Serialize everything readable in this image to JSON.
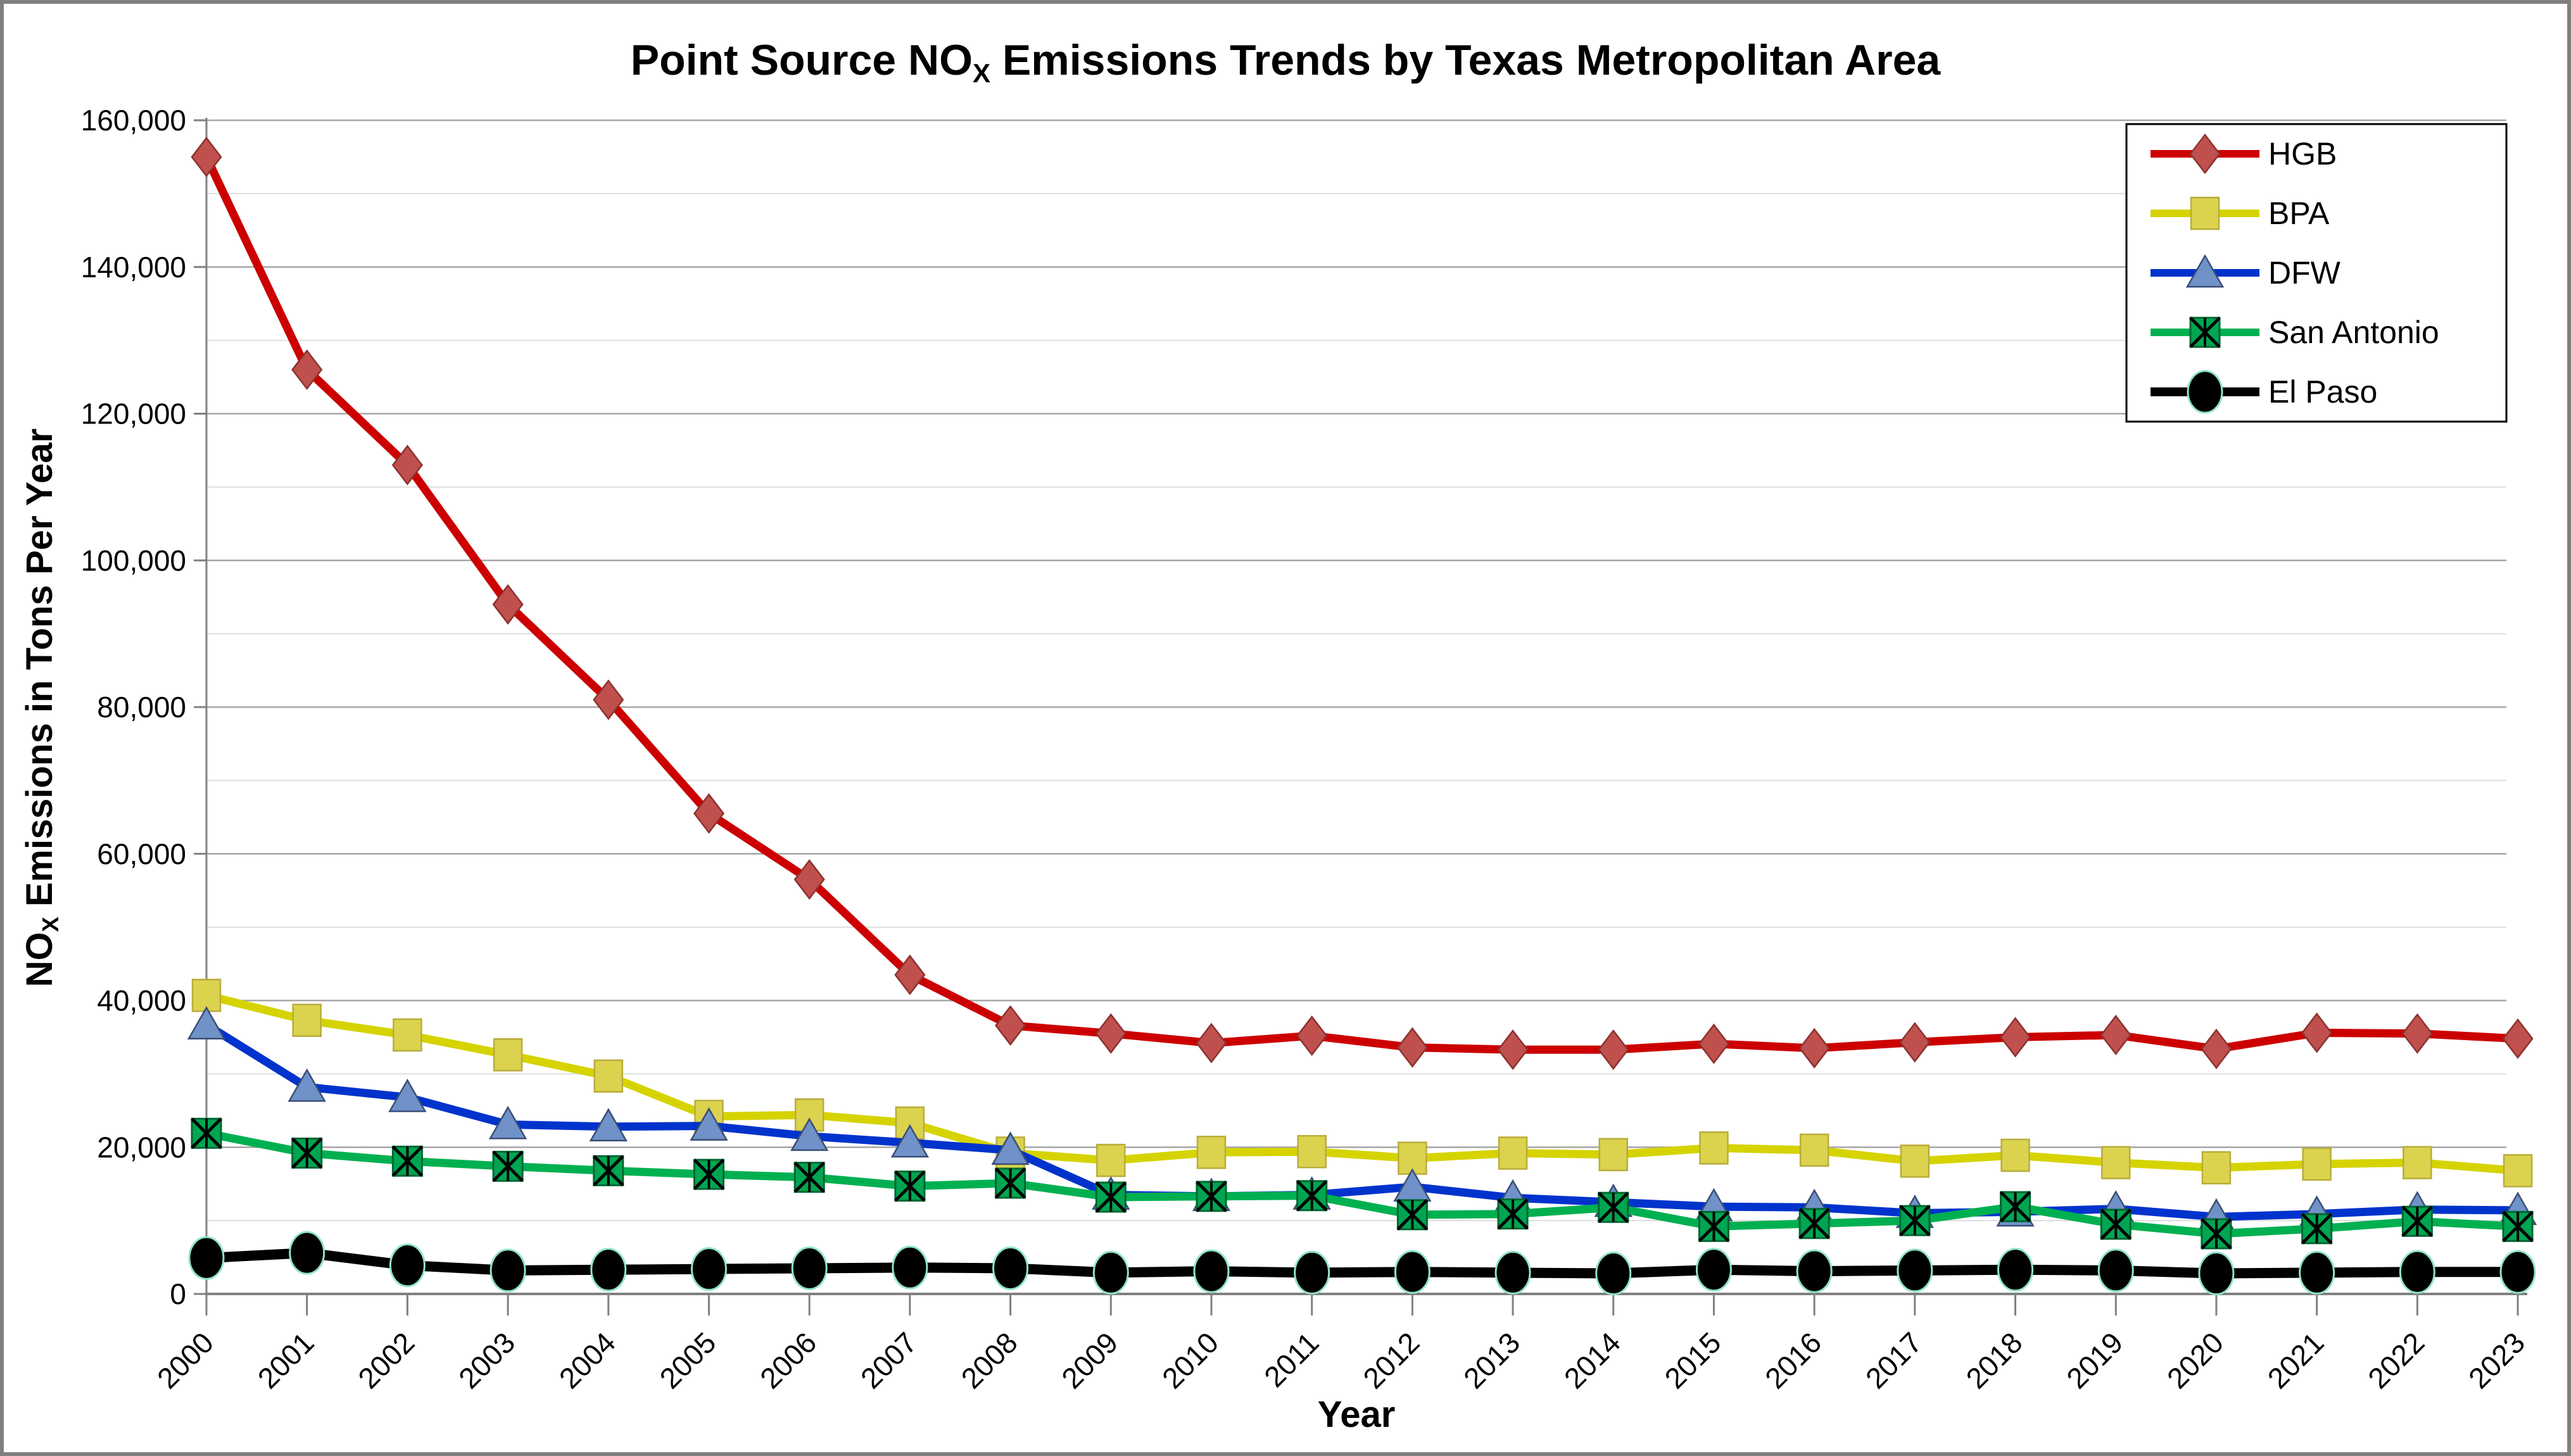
{
  "figure": {
    "title": {
      "pre": "Point Source NO",
      "sub": "X",
      "post": " Emissions Trends by Texas Metropolitan Area"
    },
    "x_axis_title": "Year",
    "y_axis_title": {
      "pre": "NO",
      "sub": "X",
      "post": " Emissions in Tons Per Year"
    },
    "y_tick_labels": [
      "0",
      "20,000",
      "40,000",
      "60,000",
      "80,000",
      "100,000",
      "120,000",
      "140,000",
      "160,000"
    ]
  },
  "legend": {
    "position": "top-right",
    "entries": [
      {
        "label": "HGB"
      },
      {
        "label": "BPA"
      },
      {
        "label": "DFW"
      },
      {
        "label": "San Antonio"
      },
      {
        "label": "El Paso"
      }
    ]
  },
  "colors": {
    "background": "#FFFFFF",
    "frame_border": "#7F7F7F",
    "major_grid": "#A6A6A6",
    "minor_grid": "#DEDEDE",
    "axis": "#808080",
    "legend_border": "#000000",
    "text": "#000000"
  },
  "chart_data": {
    "type": "line",
    "title": "Point Source NOX Emissions Trends by Texas Metropolitan Area",
    "xlabel": "Year",
    "ylabel": "NOX Emissions in Tons Per Year",
    "ylim": [
      0,
      160000
    ],
    "ytick_step": 20000,
    "minor_grid_step": 10000,
    "grid": true,
    "legend_position": "top-right",
    "x": [
      "2000",
      "2001",
      "2002",
      "2003",
      "2004",
      "2005",
      "2006",
      "2007",
      "2008",
      "2009",
      "2010",
      "2011",
      "2012",
      "2013",
      "2014",
      "2015",
      "2016",
      "2017",
      "2018",
      "2019",
      "2020",
      "2021",
      "2022",
      "2023"
    ],
    "series": [
      {
        "name": "HGB",
        "marker": "diamond",
        "line_color": "#CC0000",
        "marker_fill": "#C0504D",
        "marker_stroke": "#8A3230",
        "values": [
          155000,
          126000,
          113000,
          94000,
          81000,
          65500,
          56500,
          43500,
          36600,
          35500,
          34200,
          35200,
          33600,
          33300,
          33300,
          34100,
          33500,
          34300,
          35000,
          35300,
          33400,
          35600,
          35500,
          34800
        ]
      },
      {
        "name": "BPA",
        "marker": "square",
        "line_color": "#D6D300",
        "marker_fill": "#DBD24E",
        "marker_stroke": "#B9AC3B",
        "values": [
          40700,
          37300,
          35300,
          32600,
          29700,
          24200,
          24400,
          23300,
          19200,
          18200,
          19300,
          19400,
          18500,
          19200,
          19000,
          19900,
          19600,
          18100,
          18900,
          17900,
          17200,
          17700,
          17900,
          16800
        ]
      },
      {
        "name": "DFW",
        "marker": "triangle",
        "line_color": "#0033CC",
        "marker_fill": "#7092C8",
        "marker_stroke": "#3A4E75",
        "values": [
          36700,
          28200,
          26800,
          23100,
          22800,
          22900,
          21500,
          20600,
          19600,
          13500,
          13300,
          13500,
          14600,
          13100,
          12500,
          11900,
          11800,
          11000,
          11200,
          11600,
          10500,
          10900,
          11500,
          11400
        ]
      },
      {
        "name": "San Antonio",
        "marker": "square-x",
        "line_color": "#00B050",
        "marker_fill": "#00A551",
        "marker_stroke": "#0B3D20",
        "values": [
          21900,
          19200,
          18100,
          17400,
          16800,
          16300,
          15900,
          14700,
          15100,
          13200,
          13300,
          13400,
          10800,
          10900,
          11800,
          9200,
          9600,
          10000,
          11900,
          9500,
          8200,
          8900,
          9900,
          9200
        ]
      },
      {
        "name": "El Paso",
        "marker": "circle",
        "line_color": "#000000",
        "marker_fill": "#000000",
        "marker_stroke": "#8FE3CD",
        "values": [
          4900,
          5600,
          3900,
          3200,
          3300,
          3400,
          3500,
          3600,
          3500,
          2900,
          3100,
          2900,
          3000,
          2900,
          2800,
          3300,
          3100,
          3200,
          3300,
          3200,
          2800,
          2900,
          3000,
          3000
        ]
      }
    ]
  }
}
